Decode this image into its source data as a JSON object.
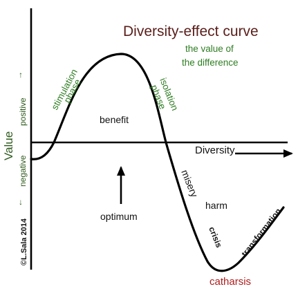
{
  "title": "Diversity-effect curve",
  "subtitle_line1": "the value of",
  "subtitle_line2": "the difference",
  "y_axis": {
    "label": "Value",
    "positive": "positive",
    "negative": "negative",
    "arrow_up": "↑",
    "arrow_down": "↓"
  },
  "x_axis": {
    "label": "Diversity"
  },
  "phases": {
    "stimulation_line1": "stimulation",
    "stimulation_line2": "phase",
    "isolation_line1": "isolation",
    "isolation_line2": "phase"
  },
  "labels": {
    "benefit": "benefit",
    "optimum": "optimum",
    "misery": "misery",
    "harm": "harm",
    "crisis": "crisis",
    "transformation": "transformation",
    "catharsis": "catharsis"
  },
  "copyright": "©L.Sala 2014",
  "colors": {
    "title": "#5a1e1a",
    "phase_text": "#2e7d22",
    "axis_label": "#2e5a1c",
    "catharsis": "#b01c1c",
    "curve": "#000000"
  }
}
